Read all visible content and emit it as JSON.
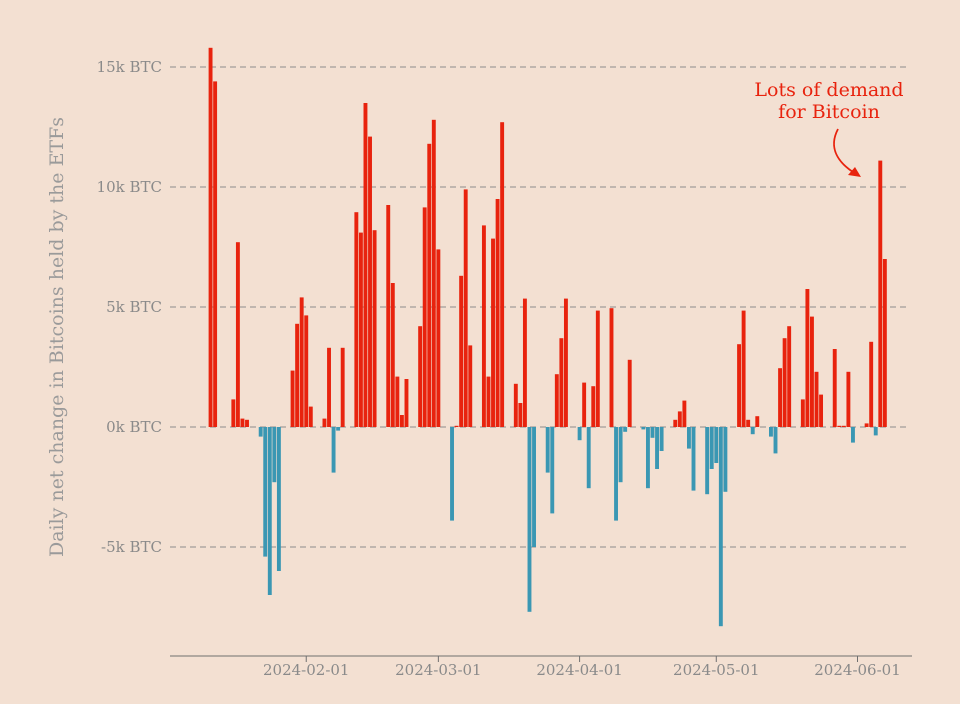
{
  "chart_data": {
    "type": "bar",
    "title": "",
    "ylabel": "Daily net change in Bitcoins held by the ETFs",
    "xlabel": "",
    "ylim": [
      -9600,
      16400
    ],
    "y_ticks": [
      {
        "value": 15000,
        "label": "15k BTC"
      },
      {
        "value": 10000,
        "label": "10k BTC"
      },
      {
        "value": 5000,
        "label": "5k BTC"
      },
      {
        "value": 0,
        "label": "0k BTC"
      },
      {
        "value": -5000,
        "label": "-5k BTC"
      }
    ],
    "x_ticks": [
      {
        "day": 31,
        "label": "2024-02-01"
      },
      {
        "day": 60,
        "label": "2024-03-01"
      },
      {
        "day": 91,
        "label": "2024-04-01"
      },
      {
        "day": 121,
        "label": "2024-05-01"
      },
      {
        "day": 152,
        "label": "2024-06-01"
      }
    ],
    "colors": {
      "positive": "#e8230e",
      "negative": "#3a97b3"
    },
    "annotation": {
      "lines": [
        "Lots of demand",
        "for Bitcoin"
      ],
      "target_day": 154,
      "target_value": 11200
    },
    "bars": [
      {
        "date": "2024-01-11",
        "day": 10,
        "value": 15800
      },
      {
        "date": "2024-01-12",
        "day": 11,
        "value": 14400
      },
      {
        "date": "2024-01-16",
        "day": 15,
        "value": 1150
      },
      {
        "date": "2024-01-17",
        "day": 16,
        "value": 7700
      },
      {
        "date": "2024-01-18",
        "day": 17,
        "value": 350
      },
      {
        "date": "2024-01-19",
        "day": 18,
        "value": 300
      },
      {
        "date": "2024-01-22",
        "day": 21,
        "value": -400
      },
      {
        "date": "2024-01-23",
        "day": 22,
        "value": -5400
      },
      {
        "date": "2024-01-24",
        "day": 23,
        "value": -7000
      },
      {
        "date": "2024-01-25",
        "day": 24,
        "value": -2300
      },
      {
        "date": "2024-01-26",
        "day": 25,
        "value": -6000
      },
      {
        "date": "2024-01-29",
        "day": 28,
        "value": 2350
      },
      {
        "date": "2024-01-30",
        "day": 29,
        "value": 4300
      },
      {
        "date": "2024-01-31",
        "day": 30,
        "value": 5400
      },
      {
        "date": "2024-02-01",
        "day": 31,
        "value": 4650
      },
      {
        "date": "2024-02-02",
        "day": 32,
        "value": 850
      },
      {
        "date": "2024-02-05",
        "day": 35,
        "value": 350
      },
      {
        "date": "2024-02-06",
        "day": 36,
        "value": 3300
      },
      {
        "date": "2024-02-07",
        "day": 37,
        "value": -1900
      },
      {
        "date": "2024-02-08",
        "day": 38,
        "value": -150
      },
      {
        "date": "2024-02-09",
        "day": 39,
        "value": 3300
      },
      {
        "date": "2024-02-12",
        "day": 42,
        "value": 8950
      },
      {
        "date": "2024-02-13",
        "day": 43,
        "value": 8100
      },
      {
        "date": "2024-02-14",
        "day": 44,
        "value": 13500
      },
      {
        "date": "2024-02-15",
        "day": 45,
        "value": 12100
      },
      {
        "date": "2024-02-16",
        "day": 46,
        "value": 8200
      },
      {
        "date": "2024-02-19",
        "day": 49,
        "value": 9250
      },
      {
        "date": "2024-02-20",
        "day": 50,
        "value": 6000
      },
      {
        "date": "2024-02-21",
        "day": 51,
        "value": 2100
      },
      {
        "date": "2024-02-22",
        "day": 52,
        "value": 500
      },
      {
        "date": "2024-02-23",
        "day": 53,
        "value": 2000
      },
      {
        "date": "2024-02-26",
        "day": 56,
        "value": 4200
      },
      {
        "date": "2024-02-27",
        "day": 57,
        "value": 9150
      },
      {
        "date": "2024-02-28",
        "day": 58,
        "value": 11800
      },
      {
        "date": "2024-02-29",
        "day": 59,
        "value": 12800
      },
      {
        "date": "2024-03-01",
        "day": 60,
        "value": 7400
      },
      {
        "date": "2024-03-04",
        "day": 63,
        "value": -3900
      },
      {
        "date": "2024-03-05",
        "day": 64,
        "value": 50
      },
      {
        "date": "2024-03-06",
        "day": 65,
        "value": 6300
      },
      {
        "date": "2024-03-07",
        "day": 66,
        "value": 9900
      },
      {
        "date": "2024-03-08",
        "day": 67,
        "value": 3400
      },
      {
        "date": "2024-03-11",
        "day": 70,
        "value": 8400
      },
      {
        "date": "2024-03-12",
        "day": 71,
        "value": 2100
      },
      {
        "date": "2024-03-13",
        "day": 72,
        "value": 7850
      },
      {
        "date": "2024-03-14",
        "day": 73,
        "value": 9500
      },
      {
        "date": "2024-03-15",
        "day": 74,
        "value": 12700
      },
      {
        "date": "2024-03-18",
        "day": 77,
        "value": 1800
      },
      {
        "date": "2024-03-19",
        "day": 78,
        "value": 1000
      },
      {
        "date": "2024-03-20",
        "day": 79,
        "value": 5350
      },
      {
        "date": "2024-03-21",
        "day": 80,
        "value": -7700
      },
      {
        "date": "2024-03-22",
        "day": 81,
        "value": -5000
      },
      {
        "date": "2024-03-25",
        "day": 84,
        "value": -1900
      },
      {
        "date": "2024-03-26",
        "day": 85,
        "value": -3600
      },
      {
        "date": "2024-03-27",
        "day": 86,
        "value": 2200
      },
      {
        "date": "2024-03-28",
        "day": 87,
        "value": 3700
      },
      {
        "date": "2024-03-29",
        "day": 88,
        "value": 5350
      },
      {
        "date": "2024-04-01",
        "day": 91,
        "value": -550
      },
      {
        "date": "2024-04-02",
        "day": 92,
        "value": 1850
      },
      {
        "date": "2024-04-03",
        "day": 93,
        "value": -2550
      },
      {
        "date": "2024-04-04",
        "day": 94,
        "value": 1700
      },
      {
        "date": "2024-04-05",
        "day": 95,
        "value": 4850
      },
      {
        "date": "2024-04-08",
        "day": 98,
        "value": 4950
      },
      {
        "date": "2024-04-09",
        "day": 99,
        "value": -3900
      },
      {
        "date": "2024-04-10",
        "day": 100,
        "value": -2300
      },
      {
        "date": "2024-04-11",
        "day": 101,
        "value": -200
      },
      {
        "date": "2024-04-12",
        "day": 102,
        "value": 2800
      },
      {
        "date": "2024-04-15",
        "day": 105,
        "value": -100
      },
      {
        "date": "2024-04-16",
        "day": 106,
        "value": -2550
      },
      {
        "date": "2024-04-17",
        "day": 107,
        "value": -450
      },
      {
        "date": "2024-04-18",
        "day": 108,
        "value": -1750
      },
      {
        "date": "2024-04-19",
        "day": 109,
        "value": -1000
      },
      {
        "date": "2024-04-22",
        "day": 112,
        "value": 300
      },
      {
        "date": "2024-04-23",
        "day": 113,
        "value": 650
      },
      {
        "date": "2024-04-24",
        "day": 114,
        "value": 1100
      },
      {
        "date": "2024-04-25",
        "day": 115,
        "value": -900
      },
      {
        "date": "2024-04-26",
        "day": 116,
        "value": -2650
      },
      {
        "date": "2024-04-29",
        "day": 119,
        "value": -2800
      },
      {
        "date": "2024-04-30",
        "day": 120,
        "value": -1750
      },
      {
        "date": "2024-05-01",
        "day": 121,
        "value": -1500
      },
      {
        "date": "2024-05-02",
        "day": 122,
        "value": -8300
      },
      {
        "date": "2024-05-03",
        "day": 123,
        "value": -2700
      },
      {
        "date": "2024-05-06",
        "day": 126,
        "value": 3450
      },
      {
        "date": "2024-05-07",
        "day": 127,
        "value": 4850
      },
      {
        "date": "2024-05-08",
        "day": 128,
        "value": 300
      },
      {
        "date": "2024-05-09",
        "day": 129,
        "value": -300
      },
      {
        "date": "2024-05-10",
        "day": 130,
        "value": 450
      },
      {
        "date": "2024-05-13",
        "day": 133,
        "value": -400
      },
      {
        "date": "2024-05-14",
        "day": 134,
        "value": -1100
      },
      {
        "date": "2024-05-15",
        "day": 135,
        "value": 2450
      },
      {
        "date": "2024-05-16",
        "day": 136,
        "value": 3700
      },
      {
        "date": "2024-05-17",
        "day": 137,
        "value": 4200
      },
      {
        "date": "2024-05-20",
        "day": 140,
        "value": 1150
      },
      {
        "date": "2024-05-21",
        "day": 141,
        "value": 5750
      },
      {
        "date": "2024-05-22",
        "day": 142,
        "value": 4600
      },
      {
        "date": "2024-05-23",
        "day": 143,
        "value": 2300
      },
      {
        "date": "2024-05-24",
        "day": 144,
        "value": 1350
      },
      {
        "date": "2024-05-27",
        "day": 147,
        "value": 3250
      },
      {
        "date": "2024-05-28",
        "day": 148,
        "value": 50
      },
      {
        "date": "2024-05-29",
        "day": 149,
        "value": 50
      },
      {
        "date": "2024-05-30",
        "day": 150,
        "value": 2300
      },
      {
        "date": "2024-05-31",
        "day": 151,
        "value": -650
      },
      {
        "date": "2024-06-03",
        "day": 154,
        "value": 150
      },
      {
        "date": "2024-06-04",
        "day": 155,
        "value": 3550
      },
      {
        "date": "2024-06-05",
        "day": 156,
        "value": -350
      },
      {
        "date": "2024-06-06",
        "day": 157,
        "value": 11100
      },
      {
        "date": "2024-06-07",
        "day": 158,
        "value": 7000
      }
    ]
  }
}
